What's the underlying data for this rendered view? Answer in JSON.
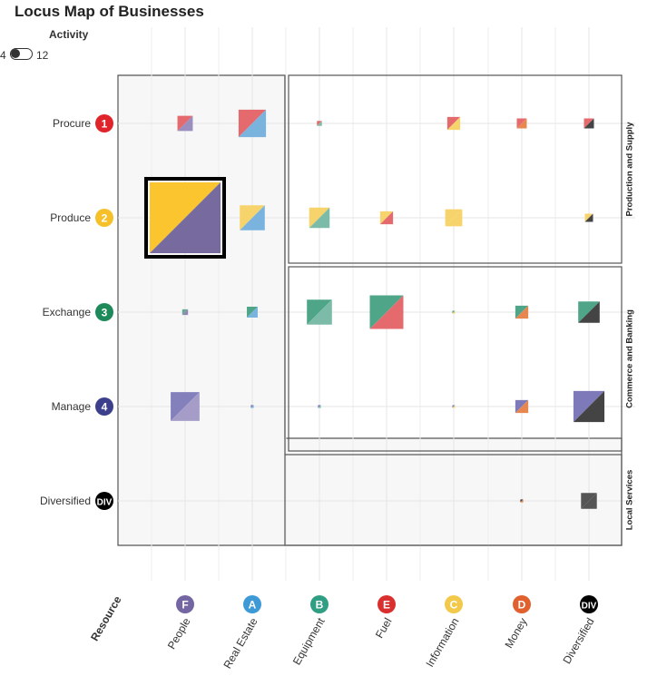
{
  "title": "Locus Map of Businesses",
  "activity_control": {
    "label": "Activity",
    "min_label": "4",
    "max_label": "12",
    "state": "off"
  },
  "chart_data": {
    "type": "heatmap",
    "title": "Locus Map of Businesses",
    "y_title": "",
    "x_title": "Resource",
    "rows": [
      {
        "label": "Procure",
        "badge": "1",
        "color": "#e0242b"
      },
      {
        "label": "Produce",
        "badge": "2",
        "color": "#f5c02a"
      },
      {
        "label": "Exchange",
        "badge": "3",
        "color": "#1e8a5a"
      },
      {
        "label": "Manage",
        "badge": "4",
        "color": "#3b3f8c"
      },
      {
        "label": "Diversified",
        "badge": "DIV",
        "color": "#000000"
      }
    ],
    "columns": [
      {
        "label": "People",
        "badge": "F",
        "color": "#7466a3"
      },
      {
        "label": "Real Estate",
        "badge": "A",
        "color": "#3d9ad6"
      },
      {
        "label": "Equipment",
        "badge": "B",
        "color": "#2f9e82"
      },
      {
        "label": "Fuel",
        "badge": "E",
        "color": "#d9302f"
      },
      {
        "label": "Information",
        "badge": "C",
        "color": "#f3c94b"
      },
      {
        "label": "Money",
        "badge": "D",
        "color": "#e0602e"
      },
      {
        "label": "Diversified",
        "badge": "DIV",
        "color": "#000000"
      }
    ],
    "groups": [
      {
        "label": "Production and Supply",
        "rows": [
          0,
          1
        ],
        "cols": [
          2,
          6
        ]
      },
      {
        "label": "Commerce and Banking",
        "rows": [
          2,
          3
        ],
        "cols": [
          2,
          6
        ]
      },
      {
        "label": "Local Services",
        "rows": [
          4,
          4
        ],
        "cols": [
          2,
          6
        ]
      }
    ],
    "highlight": {
      "row": 1,
      "col": 0
    },
    "cells": [
      {
        "row": 0,
        "col": 0,
        "value": 0.28,
        "c1": "#e46a6e",
        "c2": "#9b8fc0"
      },
      {
        "row": 0,
        "col": 1,
        "value": 0.9,
        "c1": "#e46a6e",
        "c2": "#79b3de"
      },
      {
        "row": 0,
        "col": 2,
        "value": 0.03,
        "c1": "#e46a6e",
        "c2": "#7bbba7"
      },
      {
        "row": 0,
        "col": 4,
        "value": 0.2,
        "c1": "#e46a6e",
        "c2": "#f6d46b"
      },
      {
        "row": 0,
        "col": 5,
        "value": 0.12,
        "c1": "#e46a6e",
        "c2": "#e88650"
      },
      {
        "row": 0,
        "col": 6,
        "value": 0.12,
        "c1": "#e46a6e",
        "c2": "#444444"
      },
      {
        "row": 1,
        "col": 0,
        "value": 6.0,
        "c1": "#fbc530",
        "c2": "#766a9e"
      },
      {
        "row": 1,
        "col": 1,
        "value": 0.75,
        "c1": "#f6d46b",
        "c2": "#79b3de"
      },
      {
        "row": 1,
        "col": 2,
        "value": 0.5,
        "c1": "#f6d46b",
        "c2": "#7bbba7"
      },
      {
        "row": 1,
        "col": 3,
        "value": 0.2,
        "c1": "#f6d46b",
        "c2": "#e46a6e"
      },
      {
        "row": 1,
        "col": 4,
        "value": 0.35,
        "c1": "#f6d46b",
        "c2": "#f6d46b"
      },
      {
        "row": 1,
        "col": 6,
        "value": 0.08,
        "c1": "#f6d46b",
        "c2": "#444444"
      },
      {
        "row": 2,
        "col": 0,
        "value": 0.04,
        "c1": "#6aa895",
        "c2": "#8f86b5"
      },
      {
        "row": 2,
        "col": 1,
        "value": 0.14,
        "c1": "#4fa588",
        "c2": "#79b3de"
      },
      {
        "row": 2,
        "col": 2,
        "value": 0.75,
        "c1": "#4fa588",
        "c2": "#7bbba7"
      },
      {
        "row": 2,
        "col": 3,
        "value": 1.35,
        "c1": "#4fa588",
        "c2": "#e46a6e"
      },
      {
        "row": 2,
        "col": 4,
        "value": 0.005,
        "c1": "#4fa588",
        "c2": "#f6d46b"
      },
      {
        "row": 2,
        "col": 5,
        "value": 0.2,
        "c1": "#4fa588",
        "c2": "#e88650"
      },
      {
        "row": 2,
        "col": 6,
        "value": 0.55,
        "c1": "#4fa588",
        "c2": "#444444"
      },
      {
        "row": 3,
        "col": 0,
        "value": 1.0,
        "c1": "#8480bb",
        "c2": "#a59dc8"
      },
      {
        "row": 3,
        "col": 1,
        "value": 0.01,
        "c1": "#7e7aba",
        "c2": "#79b3de"
      },
      {
        "row": 3,
        "col": 2,
        "value": 0.01,
        "c1": "#7e7aba",
        "c2": "#7bbba7"
      },
      {
        "row": 3,
        "col": 4,
        "value": 0.005,
        "c1": "#7e7aba",
        "c2": "#f6d46b"
      },
      {
        "row": 3,
        "col": 5,
        "value": 0.2,
        "c1": "#7e7aba",
        "c2": "#e88650"
      },
      {
        "row": 3,
        "col": 6,
        "value": 1.15,
        "c1": "#7e7aba",
        "c2": "#444444"
      },
      {
        "row": 4,
        "col": 5,
        "value": 0.01,
        "c1": "#444444",
        "c2": "#e88650"
      },
      {
        "row": 4,
        "col": 6,
        "value": 0.3,
        "c1": "#555555",
        "c2": "#555555"
      }
    ]
  }
}
